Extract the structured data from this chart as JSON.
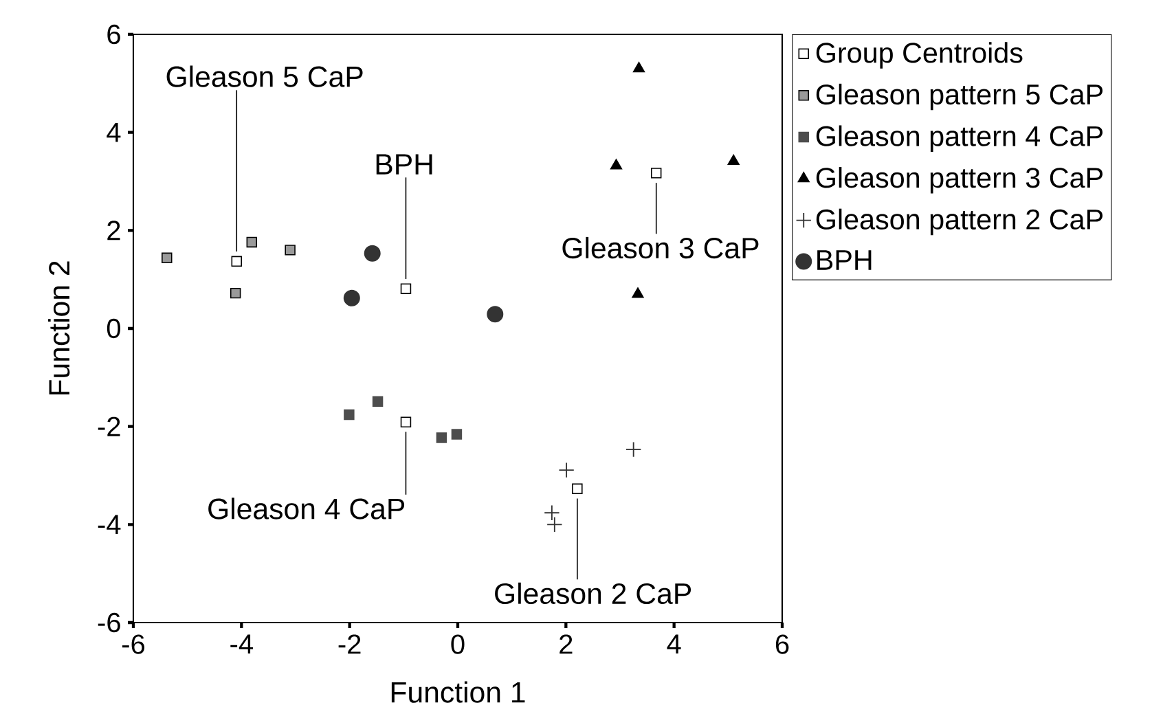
{
  "chart_data": {
    "type": "scatter",
    "xlabel": "Function 1",
    "ylabel": "Function 2",
    "xlim": [
      -6,
      6
    ],
    "ylim": [
      -6,
      6
    ],
    "xticks": [
      -6,
      -4,
      -2,
      0,
      2,
      4,
      6
    ],
    "yticks": [
      -6,
      -4,
      -2,
      0,
      2,
      4,
      6
    ],
    "legend": "right",
    "series": [
      {
        "name": "Group Centroids",
        "color": "#ffffff",
        "marker": "square",
        "x": [
          -4.09,
          -0.96,
          3.67,
          -0.96,
          2.21
        ],
        "values": [
          1.37,
          0.81,
          3.17,
          -1.91,
          -3.27
        ]
      },
      {
        "name": "Gleason pattern 5 CaP",
        "color": "#9a9a9a",
        "marker": "square",
        "x": [
          -5.38,
          -3.81,
          -3.1,
          -4.11
        ],
        "values": [
          1.44,
          1.76,
          1.6,
          0.72
        ]
      },
      {
        "name": "Gleason pattern 4 CaP",
        "color": "#4d4d4d",
        "marker": "square",
        "x": [
          -2.01,
          -1.48,
          -0.3,
          -0.02
        ],
        "values": [
          -1.76,
          -1.49,
          -2.23,
          -2.16
        ]
      },
      {
        "name": "Gleason pattern 3 CaP",
        "color": "#000000",
        "marker": "triangle",
        "x": [
          3.35,
          2.93,
          5.1,
          3.33
        ],
        "values": [
          5.3,
          3.32,
          3.41,
          0.7
        ]
      },
      {
        "name": "Gleason pattern 2 CaP",
        "color": "#333333",
        "marker": "cross",
        "x": [
          3.25,
          2.01,
          1.74,
          1.79
        ],
        "values": [
          -2.47,
          -2.89,
          -3.76,
          -4.0
        ]
      },
      {
        "name": "BPH",
        "color": "#333333",
        "marker": "circle",
        "x": [
          -1.58,
          -1.96,
          0.69
        ],
        "values": [
          1.53,
          0.62,
          0.29
        ]
      }
    ],
    "annotations": [
      {
        "text": "Gleason 5 CaP",
        "x": -4.09,
        "y": 1.37
      },
      {
        "text": "BPH",
        "x": -0.96,
        "y": 0.81
      },
      {
        "text": "Gleason 3 CaP",
        "x": 3.67,
        "y": 3.17
      },
      {
        "text": "Gleason 4 CaP",
        "x": -0.96,
        "y": -1.91
      },
      {
        "text": "Gleason 2 CaP",
        "x": 2.21,
        "y": -3.27
      }
    ]
  }
}
